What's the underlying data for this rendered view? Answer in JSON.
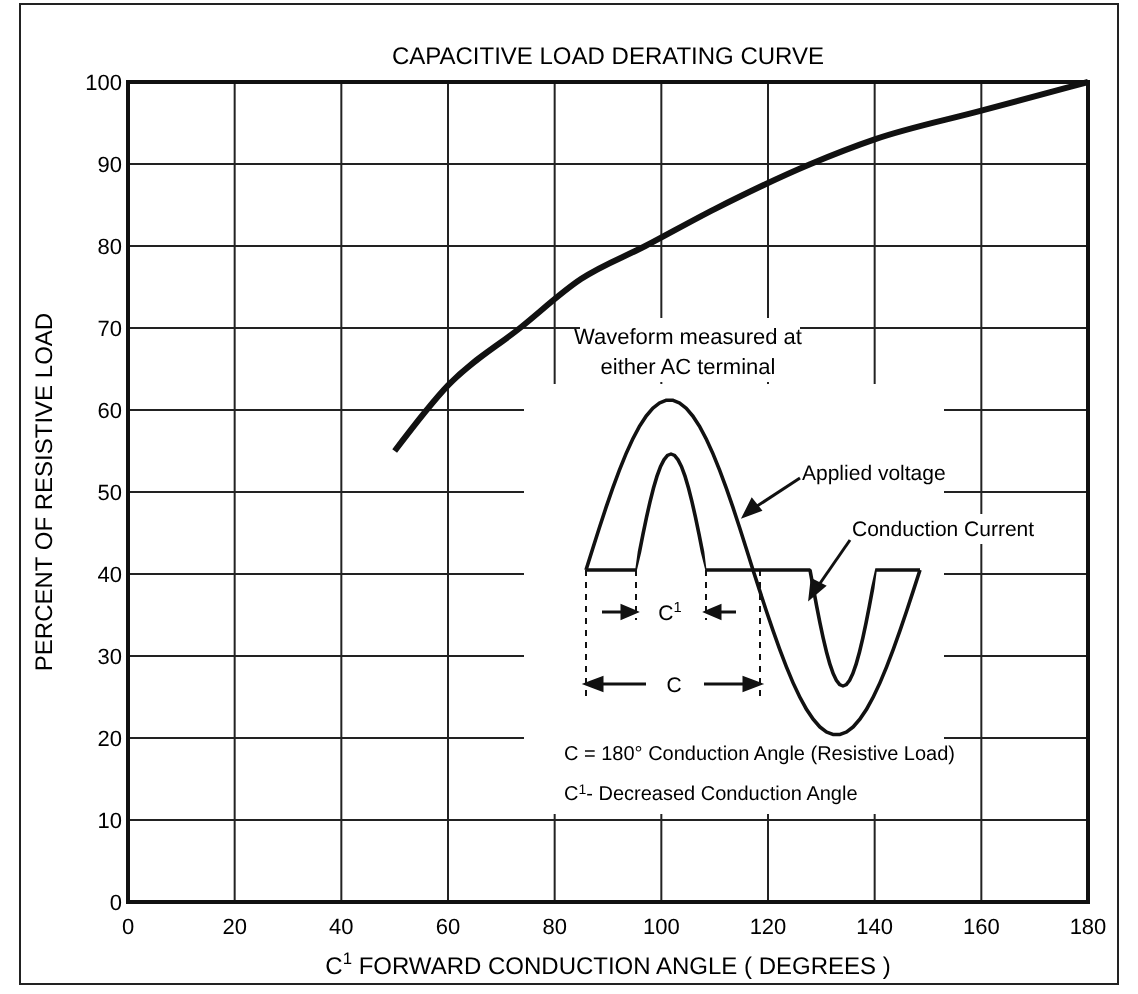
{
  "chart_data": {
    "type": "line",
    "title": "CAPACITIVE LOAD DERATING CURVE",
    "xlabel": "C$^{1}$ FORWARD CONDUCTION ANGLE ( DEGREES )",
    "ylabel": "PERCENT OF RESISTIVE LOAD",
    "x": [
      50,
      60,
      73.5,
      85,
      97,
      110,
      128,
      140,
      160,
      180
    ],
    "series": [
      {
        "color": "#111111",
        "values": [
          55,
          63,
          70,
          76,
          80,
          84.5,
          90,
          93,
          96.5,
          100
        ]
      }
    ],
    "xlim": [
      0,
      180
    ],
    "xticks": [
      0,
      20,
      40,
      60,
      80,
      100,
      120,
      140,
      160,
      180
    ],
    "ylim": [
      0,
      100
    ],
    "yticks": [
      0,
      10,
      20,
      30,
      40,
      50,
      60,
      70,
      80,
      90,
      100
    ],
    "grid": true,
    "marker": "none",
    "line_style": "solid",
    "annotations": [
      "Waveform measured at either AC terminal",
      "Applied voltage",
      "Conduction Current",
      "C$^{1}$",
      "C",
      "C = 180° Conduction Angle (Resistive Load)",
      "C$^{1}$- Decreased Conduction Angle"
    ]
  }
}
